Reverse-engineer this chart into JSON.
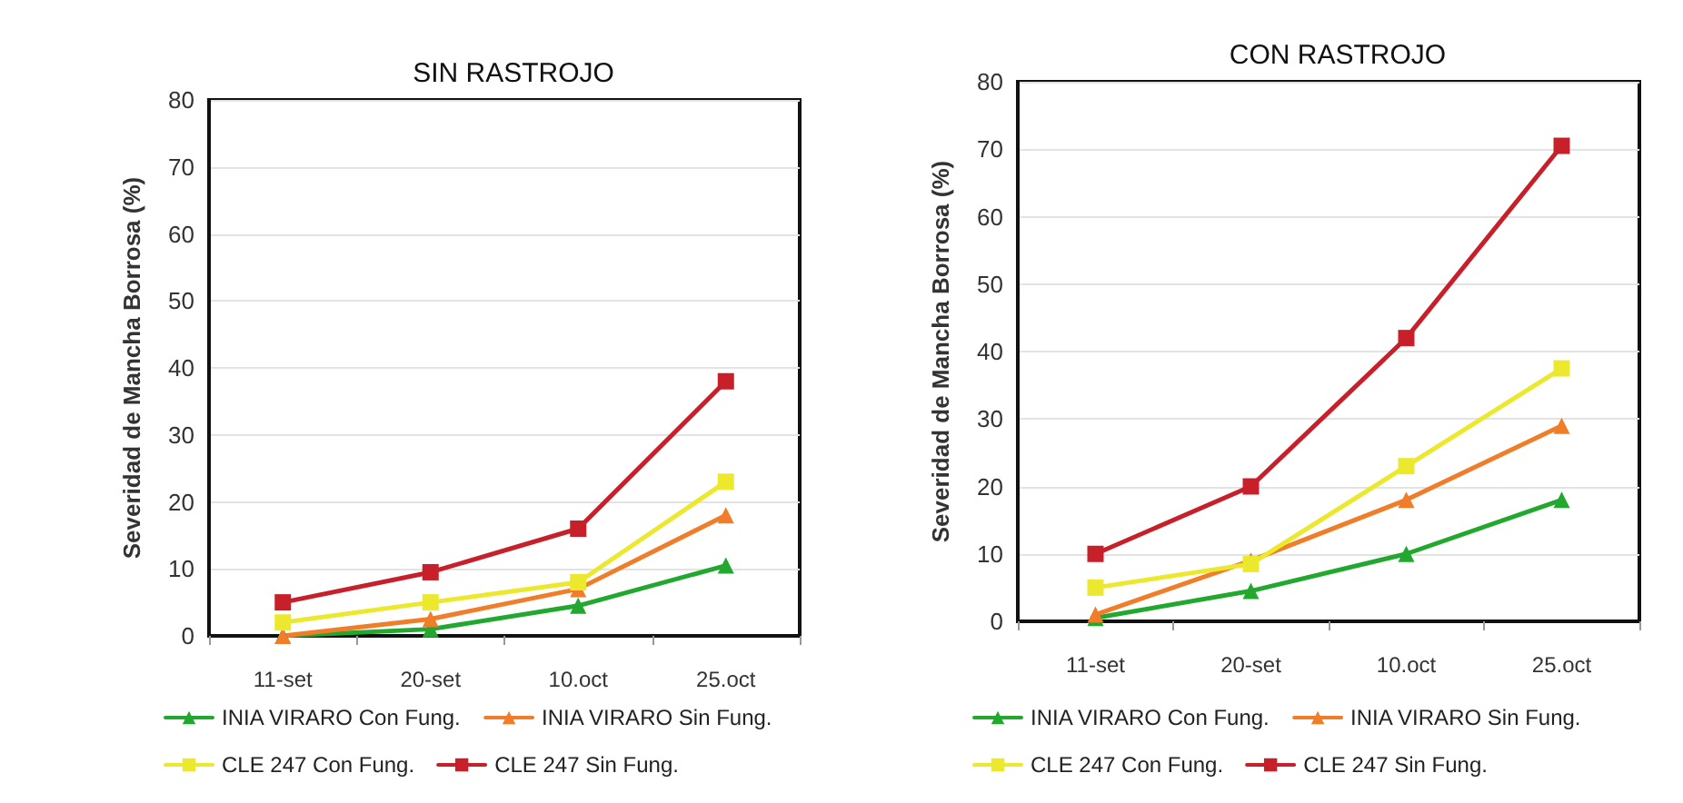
{
  "chart_data": [
    {
      "type": "line",
      "title": "SIN RASTROJO",
      "ylabel": "Severidad de Mancha Borrosa (%)",
      "categories": [
        "11-set",
        "20-set",
        "10.oct",
        "25.oct"
      ],
      "ylim": [
        0,
        80
      ],
      "yticks": [
        0,
        10,
        20,
        30,
        40,
        50,
        60,
        70,
        80
      ],
      "grid": "y",
      "legend": "bottom",
      "series": [
        {
          "name": "INIA VIRARO Con Fung.",
          "color": "#22a82e",
          "marker": "triangle",
          "values": [
            0,
            1,
            4.5,
            10.5
          ]
        },
        {
          "name": "INIA VIRARO Sin Fung.",
          "color": "#f07d2a",
          "marker": "triangle",
          "values": [
            0,
            2.5,
            7,
            18
          ]
        },
        {
          "name": "CLE 247 Con Fung.",
          "color": "#ece82e",
          "marker": "square",
          "values": [
            2,
            5,
            8,
            23
          ]
        },
        {
          "name": "CLE 247 Sin Fung.",
          "color": "#c8202a",
          "marker": "square",
          "values": [
            5,
            9.5,
            16,
            38
          ]
        }
      ]
    },
    {
      "type": "line",
      "title": "CON RASTROJO",
      "ylabel": "Severidad de Mancha Borrosa (%)",
      "categories": [
        "11-set",
        "20-set",
        "10.oct",
        "25.oct"
      ],
      "ylim": [
        0,
        80
      ],
      "yticks": [
        0,
        10,
        20,
        30,
        40,
        50,
        60,
        70,
        80
      ],
      "grid": "y",
      "legend": "bottom",
      "series": [
        {
          "name": "INIA VIRARO Con Fung.",
          "color": "#22a82e",
          "marker": "triangle",
          "values": [
            0.5,
            4.5,
            10,
            18
          ]
        },
        {
          "name": "INIA VIRARO Sin Fung.",
          "color": "#f07d2a",
          "marker": "triangle",
          "values": [
            1,
            9,
            18,
            29
          ]
        },
        {
          "name": "CLE 247 Con Fung.",
          "color": "#ece82e",
          "marker": "square",
          "values": [
            5,
            8.5,
            23,
            37.5
          ]
        },
        {
          "name": "CLE 247 Sin Fung.",
          "color": "#c8202a",
          "marker": "square",
          "values": [
            10,
            20,
            42,
            70.5
          ]
        }
      ]
    }
  ]
}
